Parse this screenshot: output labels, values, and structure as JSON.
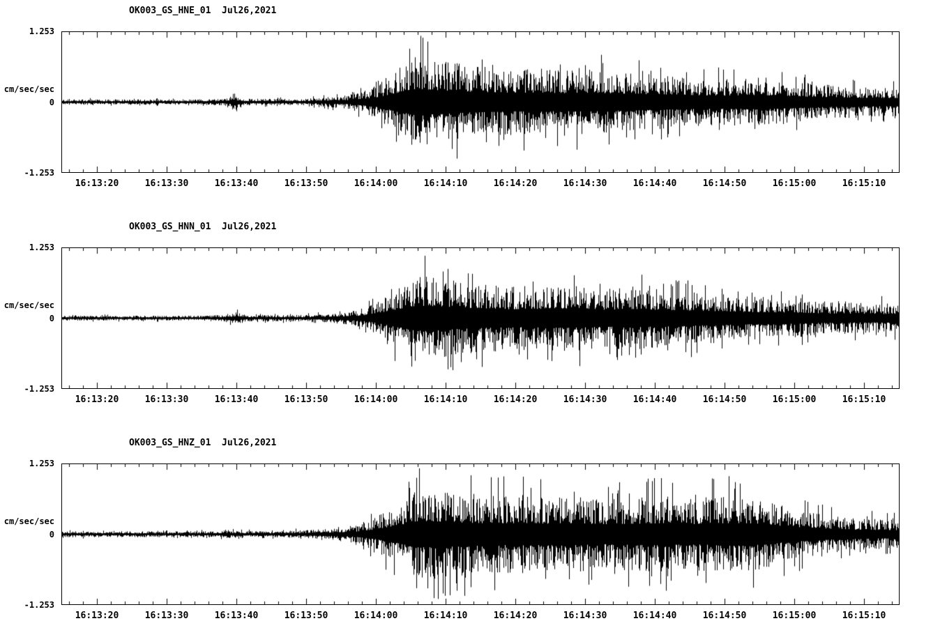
{
  "page": {
    "background_color": "#ffffff",
    "trace_color": "#000000"
  },
  "chart_data": [
    {
      "type": "line",
      "chart_kind": "seismogram-acceleration-waveform",
      "title": "OK003_GS_HNE_01  Jul26,2021",
      "station": "OK003",
      "network": "GS",
      "channel": "HNE",
      "location": "01",
      "date_label": "Jul26,2021",
      "ylabel": "cm/sec/sec",
      "y_max_label": "1.253",
      "y_zero_label": "0",
      "y_min_label": "-1.253",
      "ylim": [
        -1.253,
        1.253
      ],
      "line_color": "#000000",
      "duration_seconds": 120,
      "x_tick_seconds": [
        5,
        15,
        25,
        35,
        45,
        55,
        65,
        75,
        85,
        95,
        105,
        115
      ],
      "x_minor_tick_step_seconds": 2,
      "x_tick_labels": [
        "16:13:20",
        "16:13:30",
        "16:13:40",
        "16:13:50",
        "16:14:00",
        "16:14:10",
        "16:14:20",
        "16:14:30",
        "16:14:40",
        "16:14:50",
        "16:15:00",
        "16:15:10"
      ],
      "envelope": {
        "t": [
          0,
          20,
          23,
          24.5,
          26,
          34,
          38,
          41,
          43,
          45,
          47,
          49,
          51,
          53,
          55,
          57,
          60,
          64,
          68,
          72,
          76,
          80,
          85,
          90,
          95,
          100,
          104,
          108,
          112,
          116,
          120
        ],
        "a": [
          0.05,
          0.05,
          0.06,
          0.14,
          0.06,
          0.06,
          0.09,
          0.13,
          0.2,
          0.3,
          0.5,
          0.7,
          0.86,
          0.8,
          0.75,
          0.7,
          0.65,
          0.6,
          0.62,
          0.58,
          0.6,
          0.55,
          0.5,
          0.45,
          0.42,
          0.46,
          0.4,
          0.33,
          0.3,
          0.27,
          0.26
        ]
      }
    },
    {
      "type": "line",
      "chart_kind": "seismogram-acceleration-waveform",
      "title": "OK003_GS_HNN_01  Jul26,2021",
      "station": "OK003",
      "network": "GS",
      "channel": "HNN",
      "location": "01",
      "date_label": "Jul26,2021",
      "ylabel": "cm/sec/sec",
      "y_max_label": "1.253",
      "y_zero_label": "0",
      "y_min_label": "-1.253",
      "ylim": [
        -1.253,
        1.253
      ],
      "line_color": "#000000",
      "duration_seconds": 120,
      "x_tick_seconds": [
        5,
        15,
        25,
        35,
        45,
        55,
        65,
        75,
        85,
        95,
        105,
        115
      ],
      "x_minor_tick_step_seconds": 2,
      "x_tick_labels": [
        "16:13:20",
        "16:13:30",
        "16:13:40",
        "16:13:50",
        "16:14:00",
        "16:14:10",
        "16:14:20",
        "16:14:30",
        "16:14:40",
        "16:14:50",
        "16:15:00",
        "16:15:10"
      ],
      "envelope": {
        "t": [
          0,
          20,
          23,
          25,
          27,
          34,
          38,
          41,
          43,
          45,
          47,
          49,
          51,
          53,
          56,
          60,
          64,
          68,
          72,
          75,
          78,
          82,
          86,
          90,
          94,
          98,
          102,
          106,
          110,
          114,
          118,
          120
        ],
        "a": [
          0.045,
          0.045,
          0.06,
          0.11,
          0.06,
          0.06,
          0.08,
          0.12,
          0.18,
          0.28,
          0.46,
          0.66,
          0.82,
          0.76,
          0.7,
          0.64,
          0.58,
          0.6,
          0.63,
          0.58,
          0.55,
          0.6,
          0.52,
          0.48,
          0.45,
          0.4,
          0.38,
          0.34,
          0.3,
          0.28,
          0.27,
          0.26
        ]
      }
    },
    {
      "type": "line",
      "chart_kind": "seismogram-acceleration-waveform",
      "title": "OK003_GS_HNZ_01  Jul26,2021",
      "station": "OK003",
      "network": "GS",
      "channel": "HNZ",
      "location": "01",
      "date_label": "Jul26,2021",
      "ylabel": "cm/sec/sec",
      "y_max_label": "1.253",
      "y_zero_label": "0",
      "y_min_label": "-1.253",
      "ylim": [
        -1.253,
        1.253
      ],
      "line_color": "#000000",
      "duration_seconds": 120,
      "x_tick_seconds": [
        5,
        15,
        25,
        35,
        45,
        55,
        65,
        75,
        85,
        95,
        105,
        115
      ],
      "x_minor_tick_step_seconds": 2,
      "x_tick_labels": [
        "16:13:20",
        "16:13:30",
        "16:13:40",
        "16:13:50",
        "16:14:00",
        "16:14:10",
        "16:14:20",
        "16:14:30",
        "16:14:40",
        "16:14:50",
        "16:15:00",
        "16:15:10"
      ],
      "envelope": {
        "t": [
          0,
          20,
          24,
          26,
          30,
          34,
          38,
          42,
          45,
          48,
          50,
          52,
          55,
          58,
          62,
          66,
          70,
          74,
          78,
          82,
          86,
          90,
          94,
          98,
          102,
          106,
          110,
          114,
          118,
          120
        ],
        "a": [
          0.055,
          0.055,
          0.07,
          0.06,
          0.06,
          0.07,
          0.1,
          0.16,
          0.32,
          0.56,
          0.76,
          0.86,
          0.8,
          0.75,
          0.7,
          0.72,
          0.68,
          0.7,
          0.65,
          0.68,
          0.7,
          0.65,
          0.7,
          0.72,
          0.58,
          0.44,
          0.35,
          0.3,
          0.27,
          0.26
        ]
      }
    }
  ]
}
